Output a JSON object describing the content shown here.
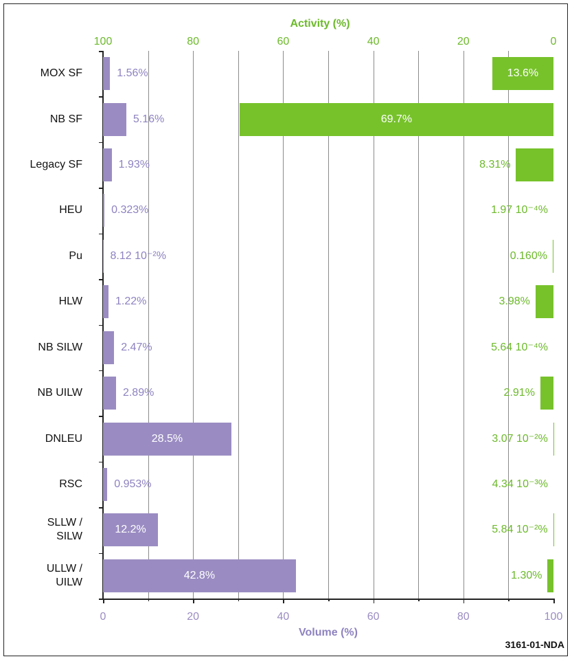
{
  "chart_data": {
    "type": "bar",
    "orientation": "horizontal",
    "categories": [
      "MOX SF",
      "NB SF",
      "Legacy SF",
      "HEU",
      "Pu",
      "HLW",
      "NB SILW",
      "NB UILW",
      "DNLEU",
      "RSC",
      "SLLW / SILW",
      "ULLW / UILW"
    ],
    "xlabel": "Volume (%)",
    "x2label": "Activity (%)",
    "xlim": [
      0,
      100
    ],
    "xticks": [
      0,
      20,
      40,
      60,
      80,
      100
    ],
    "xminorticks": [
      10,
      30,
      50,
      70,
      90
    ],
    "x2lim": [
      100,
      0
    ],
    "x2ticks": [
      100,
      80,
      60,
      40,
      20,
      0
    ],
    "grid": true,
    "series": [
      {
        "color": "#9a8cc2",
        "label_color": "#8e82c0",
        "values": [
          1.56,
          5.16,
          1.93,
          0.323,
          0.0812,
          1.22,
          2.47,
          2.89,
          28.5,
          0.953,
          12.2,
          42.8
        ],
        "value_labels": [
          "1.56%",
          "5.16%",
          "1.93%",
          "0.323%",
          "8.12 10⁻²%",
          "1.22%",
          "2.47%",
          "2.89%",
          "28.5%",
          "0.953%",
          "12.2%",
          "42.8%"
        ]
      },
      {
        "axis": "x2",
        "color": "#77c22b",
        "label_color": "#6cb92a",
        "values": [
          13.6,
          69.7,
          8.31,
          0.000197,
          0.16,
          3.98,
          0.000564,
          2.91,
          0.0307,
          0.00434,
          0.0584,
          1.3
        ],
        "value_labels": [
          "13.6%",
          "69.7%",
          "8.31%",
          "1.97 10⁻⁴%",
          "0.160%",
          "3.98%",
          "5.64 10⁻⁴%",
          "2.91%",
          "3.07 10⁻²%",
          "4.34 10⁻³%",
          "5.84 10⁻²%",
          "1.30%"
        ]
      }
    ],
    "note": "3161-01-NDA"
  }
}
